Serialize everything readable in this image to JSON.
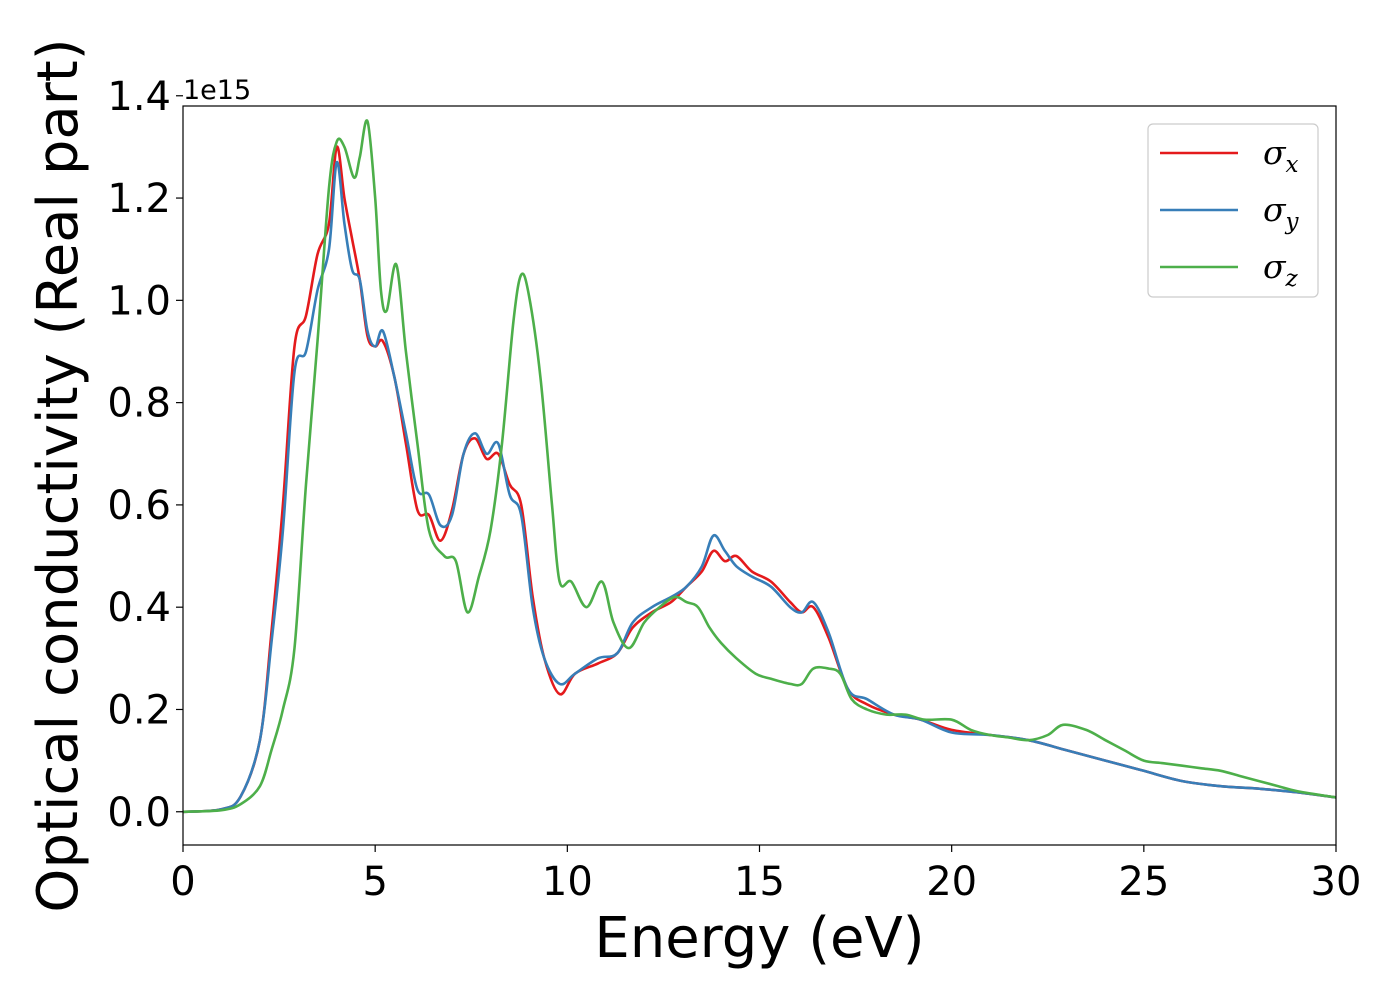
{
  "chart_data": {
    "type": "line",
    "xlabel": "Energy (eV)",
    "ylabel": "Optical conductivity (Real part)",
    "y_offset_label": "1e15",
    "xlim": [
      0,
      30
    ],
    "ylim": [
      -0.065,
      1.38
    ],
    "x_ticks": [
      0,
      5,
      10,
      15,
      20,
      25,
      30
    ],
    "x_tick_labels": [
      "0",
      "5",
      "10",
      "15",
      "20",
      "25",
      "30"
    ],
    "y_ticks": [
      0.0,
      0.2,
      0.4,
      0.6,
      0.8,
      1.0,
      1.2,
      1.4
    ],
    "y_tick_labels": [
      "0.0",
      "0.2",
      "0.4",
      "0.6",
      "0.8",
      "1.0",
      "1.2",
      "1.4"
    ],
    "grid": false,
    "legend_position": "upper-right",
    "series": [
      {
        "name": "σ",
        "subscript": "x",
        "color": "#e41a1c",
        "x": [
          0,
          1.0,
          1.5,
          2.0,
          2.3,
          2.6,
          2.9,
          3.2,
          3.5,
          3.8,
          4.0,
          4.2,
          4.4,
          4.6,
          4.8,
          5.0,
          5.2,
          5.5,
          5.8,
          6.1,
          6.4,
          6.7,
          7.0,
          7.3,
          7.6,
          7.9,
          8.2,
          8.5,
          8.8,
          9.1,
          9.4,
          9.8,
          10.2,
          10.8,
          11.3,
          11.7,
          12.2,
          12.7,
          13.1,
          13.5,
          13.8,
          14.1,
          14.4,
          14.8,
          15.3,
          15.8,
          16.1,
          16.4,
          16.8,
          17.3,
          17.8,
          18.5,
          19.2,
          20.0,
          21.0,
          22.0,
          23.0,
          24.0,
          25.0,
          26.0,
          27.0,
          28.0,
          29.0,
          30.0
        ],
        "values": [
          0.0,
          0.005,
          0.03,
          0.14,
          0.35,
          0.6,
          0.91,
          0.97,
          1.09,
          1.15,
          1.3,
          1.2,
          1.12,
          1.04,
          0.93,
          0.91,
          0.92,
          0.85,
          0.72,
          0.59,
          0.58,
          0.53,
          0.59,
          0.7,
          0.73,
          0.69,
          0.7,
          0.64,
          0.6,
          0.42,
          0.3,
          0.23,
          0.27,
          0.29,
          0.31,
          0.36,
          0.39,
          0.41,
          0.44,
          0.47,
          0.51,
          0.49,
          0.5,
          0.47,
          0.45,
          0.41,
          0.39,
          0.4,
          0.34,
          0.24,
          0.21,
          0.19,
          0.18,
          0.16,
          0.15,
          0.14,
          0.12,
          0.1,
          0.08,
          0.06,
          0.05,
          0.045,
          0.038,
          0.028
        ]
      },
      {
        "name": "σ",
        "subscript": "y",
        "color": "#377eb8",
        "x": [
          0,
          1.0,
          1.5,
          2.0,
          2.3,
          2.6,
          2.9,
          3.2,
          3.5,
          3.8,
          4.0,
          4.2,
          4.4,
          4.6,
          4.8,
          5.0,
          5.2,
          5.5,
          5.8,
          6.1,
          6.4,
          6.7,
          7.0,
          7.3,
          7.6,
          7.9,
          8.2,
          8.5,
          8.8,
          9.1,
          9.4,
          9.8,
          10.2,
          10.8,
          11.3,
          11.7,
          12.2,
          12.7,
          13.1,
          13.5,
          13.8,
          14.1,
          14.4,
          14.8,
          15.3,
          15.8,
          16.1,
          16.4,
          16.8,
          17.3,
          17.8,
          18.5,
          19.2,
          20.0,
          21.0,
          22.0,
          23.0,
          24.0,
          25.0,
          26.0,
          27.0,
          28.0,
          29.0,
          30.0
        ],
        "values": [
          0.0,
          0.005,
          0.03,
          0.14,
          0.33,
          0.55,
          0.86,
          0.9,
          1.02,
          1.1,
          1.27,
          1.15,
          1.06,
          1.04,
          0.94,
          0.91,
          0.94,
          0.85,
          0.74,
          0.63,
          0.62,
          0.56,
          0.58,
          0.7,
          0.74,
          0.7,
          0.72,
          0.62,
          0.58,
          0.4,
          0.3,
          0.25,
          0.27,
          0.3,
          0.31,
          0.37,
          0.4,
          0.42,
          0.44,
          0.48,
          0.54,
          0.51,
          0.48,
          0.46,
          0.44,
          0.4,
          0.39,
          0.41,
          0.35,
          0.24,
          0.22,
          0.19,
          0.18,
          0.155,
          0.15,
          0.14,
          0.12,
          0.1,
          0.08,
          0.06,
          0.05,
          0.045,
          0.038,
          0.028
        ]
      },
      {
        "name": "σ",
        "subscript": "z",
        "color": "#4daf4a",
        "x": [
          0,
          1.0,
          1.5,
          2.0,
          2.3,
          2.6,
          2.9,
          3.2,
          3.5,
          3.8,
          4.0,
          4.2,
          4.45,
          4.6,
          4.8,
          5.0,
          5.15,
          5.3,
          5.55,
          5.8,
          6.1,
          6.4,
          6.8,
          7.1,
          7.4,
          7.7,
          8.0,
          8.3,
          8.6,
          8.8,
          9.0,
          9.3,
          9.6,
          9.8,
          10.1,
          10.5,
          10.9,
          11.2,
          11.6,
          12.0,
          12.4,
          12.8,
          13.1,
          13.4,
          13.7,
          14.0,
          14.4,
          14.9,
          15.3,
          15.8,
          16.1,
          16.4,
          16.8,
          17.1,
          17.4,
          17.8,
          18.3,
          18.8,
          19.3,
          20.0,
          20.5,
          21.0,
          21.5,
          22.0,
          22.5,
          22.9,
          23.5,
          24.0,
          24.5,
          25.0,
          25.5,
          26.0,
          26.5,
          27.0,
          27.5,
          28.0,
          28.5,
          29.0,
          30.0
        ],
        "values": [
          0.0,
          0.003,
          0.015,
          0.05,
          0.12,
          0.2,
          0.32,
          0.64,
          0.92,
          1.22,
          1.31,
          1.3,
          1.24,
          1.28,
          1.35,
          1.2,
          1.02,
          0.98,
          1.07,
          0.9,
          0.72,
          0.55,
          0.5,
          0.49,
          0.39,
          0.46,
          0.55,
          0.72,
          0.96,
          1.05,
          1.01,
          0.85,
          0.6,
          0.45,
          0.45,
          0.4,
          0.45,
          0.37,
          0.32,
          0.37,
          0.4,
          0.42,
          0.41,
          0.4,
          0.36,
          0.33,
          0.3,
          0.27,
          0.26,
          0.25,
          0.25,
          0.28,
          0.28,
          0.27,
          0.22,
          0.2,
          0.19,
          0.19,
          0.18,
          0.18,
          0.16,
          0.15,
          0.145,
          0.14,
          0.15,
          0.17,
          0.16,
          0.14,
          0.12,
          0.1,
          0.095,
          0.09,
          0.085,
          0.08,
          0.07,
          0.06,
          0.05,
          0.04,
          0.028
        ]
      }
    ]
  }
}
